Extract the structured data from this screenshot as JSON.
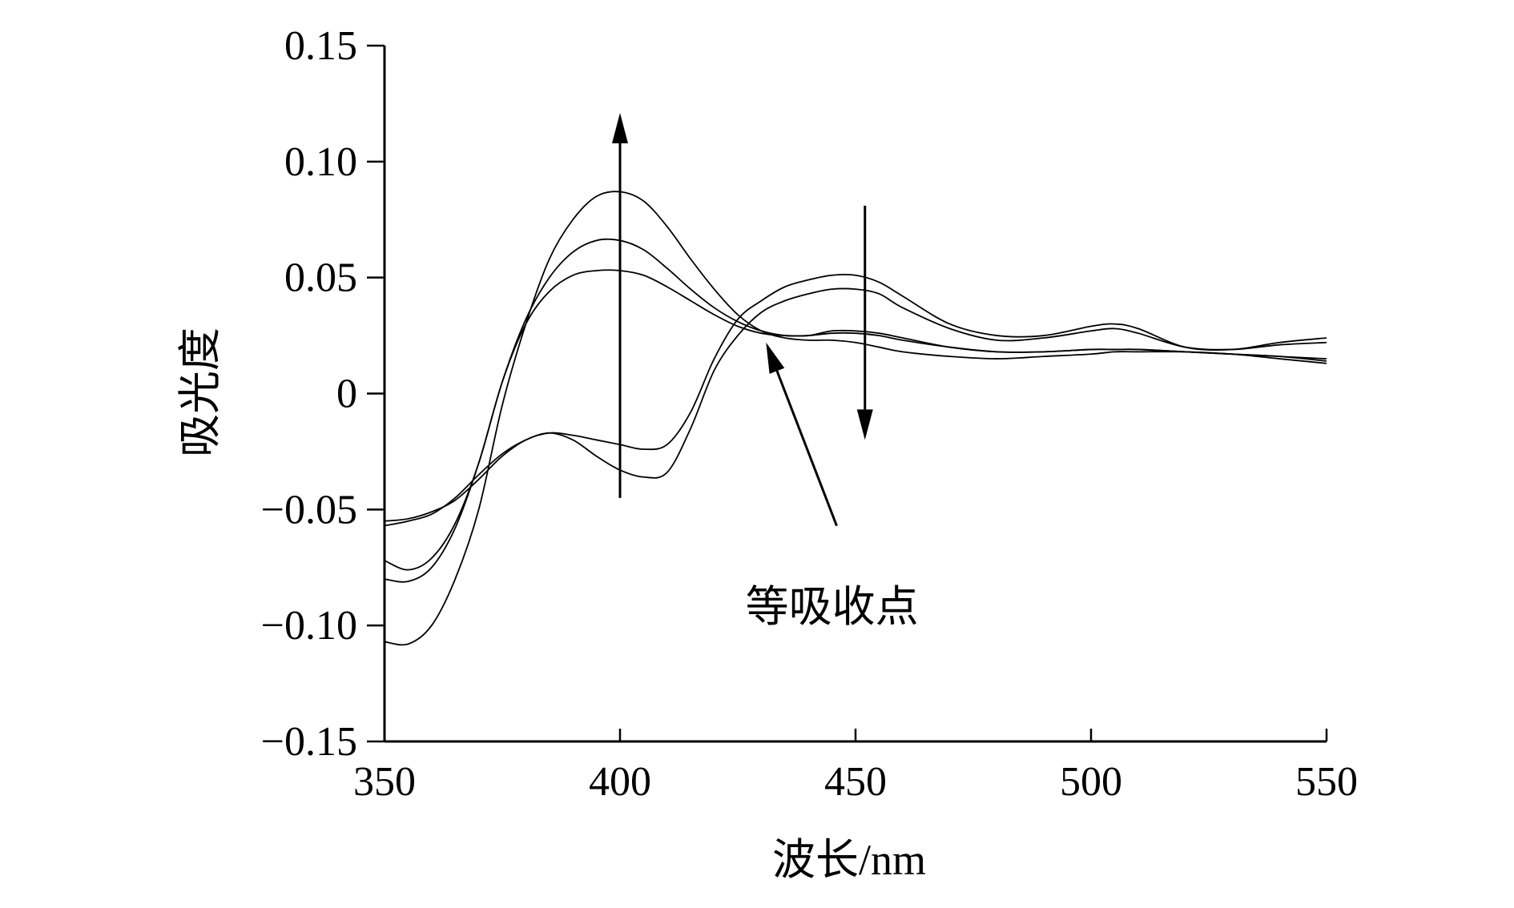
{
  "chart_data": {
    "type": "line",
    "xlabel": "波长/nm",
    "ylabel": "吸光度",
    "xlim": [
      350,
      550
    ],
    "ylim": [
      -0.15,
      0.15
    ],
    "xticks": [
      "350",
      "400",
      "450",
      "500",
      "550"
    ],
    "yticks": [
      "0.15",
      "0.10",
      "0.05",
      "0",
      "−0.05",
      "−0.10",
      "−0.15"
    ],
    "x_tick_values": [
      350,
      400,
      450,
      500,
      550
    ],
    "y_tick_values": [
      0.15,
      0.1,
      0.05,
      0,
      -0.05,
      -0.1,
      -0.15
    ],
    "grid": false,
    "series": [
      {
        "x": [
          350,
          355,
          360,
          365,
          370,
          375,
          380,
          385,
          390,
          395,
          400,
          405,
          410,
          415,
          420,
          425,
          430,
          435,
          440,
          445,
          450,
          455,
          460,
          470,
          480,
          490,
          500,
          505,
          510,
          520,
          530,
          540,
          550
        ],
        "y": [
          -0.107,
          -0.108,
          -0.1,
          -0.08,
          -0.05,
          -0.005,
          0.03,
          0.058,
          0.075,
          0.085,
          0.087,
          0.083,
          0.072,
          0.058,
          0.045,
          0.034,
          0.027,
          0.024,
          0.023,
          0.023,
          0.022,
          0.02,
          0.018,
          0.016,
          0.015,
          0.016,
          0.017,
          0.018,
          0.018,
          0.018,
          0.017,
          0.015,
          0.013
        ]
      },
      {
        "x": [
          350,
          355,
          360,
          365,
          370,
          375,
          380,
          385,
          390,
          395,
          400,
          405,
          410,
          415,
          420,
          425,
          430,
          435,
          440,
          445,
          450,
          455,
          460,
          470,
          480,
          490,
          500,
          505,
          510,
          520,
          530,
          540,
          550
        ],
        "y": [
          -0.08,
          -0.081,
          -0.075,
          -0.058,
          -0.03,
          0.005,
          0.032,
          0.05,
          0.061,
          0.066,
          0.066,
          0.062,
          0.054,
          0.045,
          0.037,
          0.031,
          0.027,
          0.025,
          0.025,
          0.026,
          0.026,
          0.025,
          0.023,
          0.02,
          0.018,
          0.018,
          0.019,
          0.019,
          0.019,
          0.018,
          0.017,
          0.016,
          0.015
        ]
      },
      {
        "x": [
          350,
          355,
          360,
          365,
          370,
          375,
          380,
          385,
          390,
          395,
          400,
          405,
          410,
          415,
          420,
          425,
          430,
          435,
          440,
          445,
          450,
          455,
          460,
          470,
          480,
          490,
          500,
          505,
          510,
          520,
          530,
          540,
          550
        ],
        "y": [
          -0.072,
          -0.076,
          -0.071,
          -0.056,
          -0.03,
          0.005,
          0.03,
          0.044,
          0.051,
          0.053,
          0.053,
          0.051,
          0.046,
          0.04,
          0.034,
          0.029,
          0.026,
          0.025,
          0.025,
          0.027,
          0.027,
          0.026,
          0.024,
          0.02,
          0.018,
          0.018,
          0.019,
          0.019,
          0.019,
          0.018,
          0.017,
          0.016,
          0.014
        ]
      },
      {
        "x": [
          350,
          355,
          360,
          365,
          370,
          375,
          380,
          385,
          390,
          395,
          400,
          405,
          410,
          415,
          420,
          425,
          430,
          435,
          440,
          445,
          450,
          455,
          460,
          470,
          480,
          490,
          500,
          505,
          510,
          520,
          530,
          540,
          550
        ],
        "y": [
          -0.057,
          -0.055,
          -0.052,
          -0.045,
          -0.035,
          -0.026,
          -0.02,
          -0.017,
          -0.02,
          -0.027,
          -0.033,
          -0.036,
          -0.034,
          -0.015,
          0.01,
          0.025,
          0.035,
          0.04,
          0.043,
          0.045,
          0.045,
          0.043,
          0.037,
          0.028,
          0.023,
          0.024,
          0.027,
          0.028,
          0.026,
          0.02,
          0.019,
          0.021,
          0.022
        ]
      },
      {
        "x": [
          350,
          355,
          360,
          365,
          370,
          375,
          380,
          385,
          390,
          395,
          400,
          405,
          410,
          415,
          420,
          425,
          430,
          435,
          440,
          445,
          450,
          455,
          460,
          470,
          480,
          490,
          500,
          505,
          510,
          520,
          530,
          540,
          550
        ],
        "y": [
          -0.055,
          -0.054,
          -0.051,
          -0.046,
          -0.037,
          -0.027,
          -0.02,
          -0.017,
          -0.018,
          -0.02,
          -0.022,
          -0.024,
          -0.022,
          -0.008,
          0.015,
          0.032,
          0.04,
          0.046,
          0.049,
          0.051,
          0.051,
          0.048,
          0.042,
          0.03,
          0.025,
          0.025,
          0.029,
          0.03,
          0.028,
          0.02,
          0.019,
          0.022,
          0.024
        ]
      }
    ],
    "annotations": [
      {
        "type": "arrow",
        "direction": "up",
        "x": 400,
        "y_from": -0.045,
        "y_to": 0.121
      },
      {
        "type": "arrow",
        "direction": "down",
        "x": 452,
        "y_from": 0.081,
        "y_to": -0.02
      },
      {
        "type": "arrow",
        "label": "等吸收点",
        "text_x": 445,
        "text_y": -0.092,
        "from_x": 446,
        "from_y": -0.057,
        "to_x": 431,
        "to_y": 0.022
      }
    ]
  }
}
